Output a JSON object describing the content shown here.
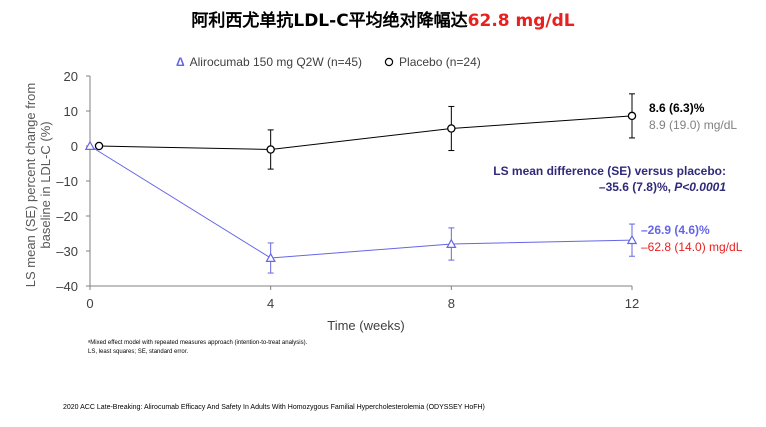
{
  "title": {
    "main": "阿利西尤单抗LDL-C平均绝对降幅达",
    "highlight": "62.8 mg/dL"
  },
  "legend": {
    "alirocumab_marker": "Δ",
    "alirocumab": "Alirocumab 150 mg Q2W (n=45)",
    "placebo": "Placebo (n=24)"
  },
  "colors": {
    "alirocumab": "#6666e6",
    "placebo": "#000000",
    "red": "#e8201f",
    "navy": "#2e2a78",
    "grey": "#808080"
  },
  "chart_data": {
    "type": "line",
    "xlabel": "Time (weeks)",
    "ylabel_line1": "LS mean (SE) percent change from",
    "ylabel_line2": "baseline in LDL-C (%)",
    "ylim": [
      -40,
      20
    ],
    "yticks": [
      20,
      10,
      0,
      -10,
      -20,
      -30,
      -40
    ],
    "xlim": [
      0,
      12
    ],
    "xticks": [
      0,
      4,
      8,
      12
    ],
    "series": [
      {
        "name": "Placebo (n=24)",
        "marker": "circle",
        "x": [
          0.2,
          4,
          8,
          12
        ],
        "values": [
          0,
          -1,
          5,
          8.6
        ],
        "err": [
          0,
          5.6,
          6.3,
          6.3
        ]
      },
      {
        "name": "Alirocumab 150 mg Q2W (n=45)",
        "marker": "triangle",
        "x": [
          0,
          4,
          8,
          12
        ],
        "values": [
          0,
          -32,
          -28,
          -26.9
        ],
        "err": [
          0,
          4.3,
          4.6,
          4.6
        ]
      }
    ],
    "annotations": {
      "placebo_pct": "8.6 (6.3)%",
      "placebo_mg": "8.9 (19.0) mg/dL",
      "diff_title": "LS mean difference (SE) versus placebo:",
      "diff_value": "–35.6 (7.8)%, ",
      "diff_p": "P<0.0001",
      "alirocumab_pct": "–26.9 (4.6)%",
      "alirocumab_mg": "–62.8 (14.0) mg/dL"
    }
  },
  "footnotes": {
    "line1": "ᵃMixed effect model with repeated measures approach (intention-to-treat analysis).",
    "line2": "LS, least squares; SE, standard error."
  },
  "source": "2020 ACC Late-Breaking: Alirocumab Efficacy And Safety In Adults With Homozygous Familial Hypercholesterolemia (ODYSSEY HoFH)"
}
